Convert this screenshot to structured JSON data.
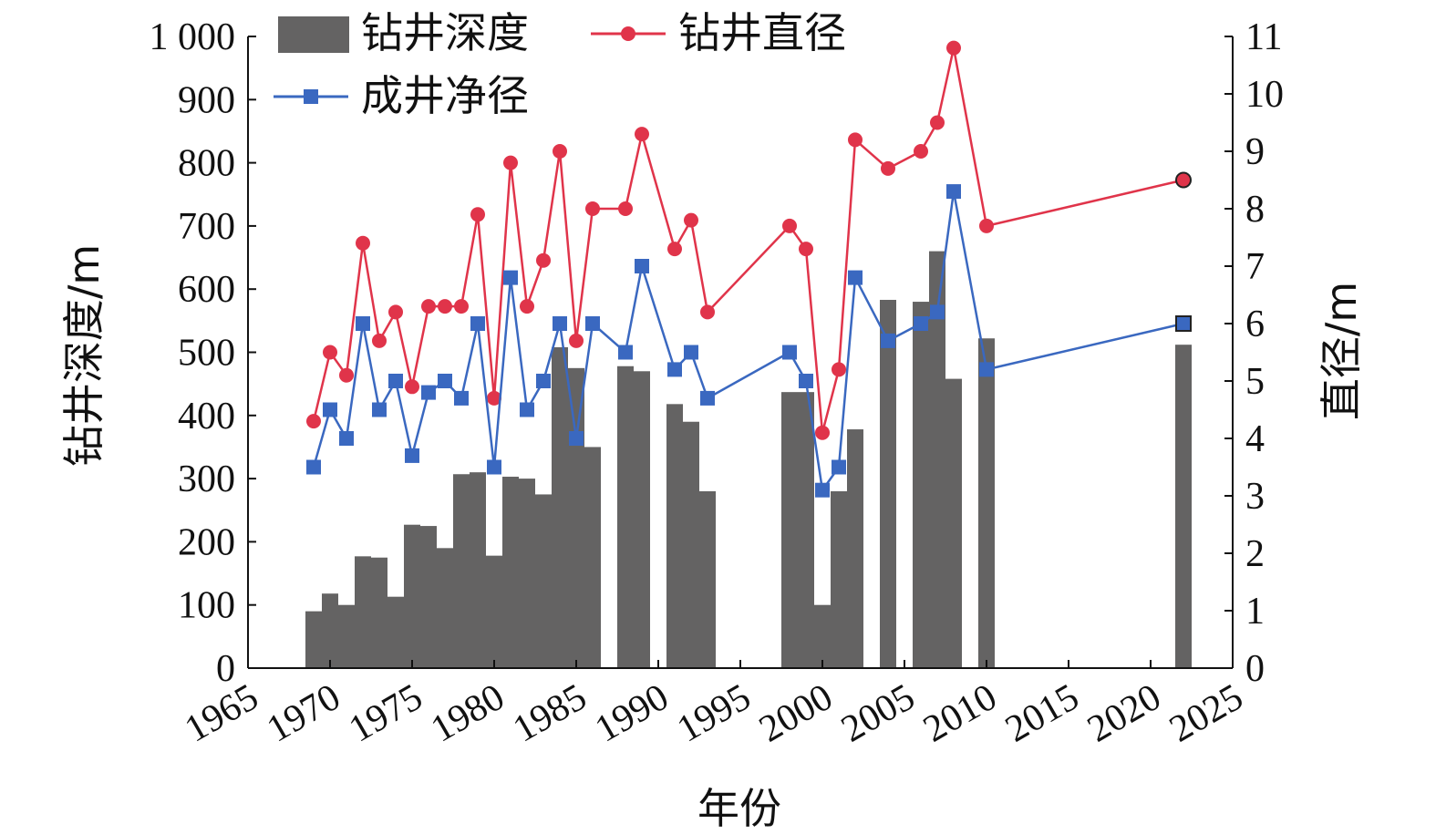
{
  "chart_data": {
    "type": "bar+line",
    "title": "",
    "xlabel": "年份",
    "ylabel_left": "钻井深度/m",
    "ylabel_right": "直径/m",
    "xlim": [
      1965,
      2025
    ],
    "x_ticks": [
      1965,
      1970,
      1975,
      1980,
      1985,
      1990,
      1995,
      2000,
      2005,
      2010,
      2015,
      2020,
      2025
    ],
    "ylim_left": [
      0,
      1000
    ],
    "y_ticks_left": [
      "0",
      "100",
      "200",
      "300",
      "400",
      "500",
      "600",
      "700",
      "800",
      "900",
      "1 000"
    ],
    "ylim_right": [
      0,
      11
    ],
    "y_ticks_right": [
      "0",
      "1",
      "2",
      "3",
      "4",
      "5",
      "6",
      "7",
      "8",
      "9",
      "10",
      "11"
    ],
    "legend_position": "top-left",
    "grid": false,
    "bars": {
      "name": "钻井深度",
      "color": "#646363",
      "points": [
        [
          1969,
          90
        ],
        [
          1970,
          118
        ],
        [
          1971,
          100
        ],
        [
          1972,
          177
        ],
        [
          1973,
          175
        ],
        [
          1974,
          113
        ],
        [
          1975,
          227
        ],
        [
          1976,
          225
        ],
        [
          1977,
          190
        ],
        [
          1978,
          307
        ],
        [
          1979,
          310
        ],
        [
          1980,
          178
        ],
        [
          1981,
          303
        ],
        [
          1982,
          300
        ],
        [
          1983,
          275
        ],
        [
          1984,
          508
        ],
        [
          1985,
          475
        ],
        [
          1986,
          350
        ],
        [
          1988,
          478
        ],
        [
          1989,
          470
        ],
        [
          1991,
          418
        ],
        [
          1992,
          390
        ],
        [
          1993,
          280
        ],
        [
          1998,
          437
        ],
        [
          1999,
          437
        ],
        [
          2000,
          100
        ],
        [
          2001,
          280
        ],
        [
          2002,
          378
        ],
        [
          2004,
          583
        ],
        [
          2006,
          580
        ],
        [
          2007,
          660
        ],
        [
          2008,
          458
        ],
        [
          2010,
          522
        ],
        [
          2022,
          512
        ]
      ]
    },
    "series": [
      {
        "name": "钻井直径",
        "color": "#e0344a",
        "marker": "circle",
        "points": [
          [
            1969,
            4.3
          ],
          [
            1970,
            5.5
          ],
          [
            1971,
            5.1
          ],
          [
            1972,
            7.4
          ],
          [
            1973,
            5.7
          ],
          [
            1974,
            6.2
          ],
          [
            1975,
            4.9
          ],
          [
            1976,
            6.3
          ],
          [
            1977,
            6.3
          ],
          [
            1978,
            6.3
          ],
          [
            1979,
            7.9
          ],
          [
            1980,
            4.7
          ],
          [
            1981,
            8.8
          ],
          [
            1982,
            6.3
          ],
          [
            1983,
            7.1
          ],
          [
            1984,
            9.0
          ],
          [
            1985,
            5.7
          ],
          [
            1986,
            8.0
          ],
          [
            1988,
            8.0
          ],
          [
            1989,
            9.3
          ],
          [
            1991,
            7.3
          ],
          [
            1992,
            7.8
          ],
          [
            1993,
            6.2
          ],
          [
            1998,
            7.7
          ],
          [
            1999,
            7.3
          ],
          [
            2000,
            4.1
          ],
          [
            2001,
            5.2
          ],
          [
            2002,
            9.2
          ],
          [
            2004,
            8.7
          ],
          [
            2006,
            9.0
          ],
          [
            2007,
            9.5
          ],
          [
            2008,
            10.8
          ],
          [
            2010,
            7.7
          ],
          [
            2022,
            8.5
          ]
        ]
      },
      {
        "name": "成井净径",
        "color": "#3a68c0",
        "marker": "square",
        "points": [
          [
            1969,
            3.5
          ],
          [
            1970,
            4.5
          ],
          [
            1971,
            4.0
          ],
          [
            1972,
            6.0
          ],
          [
            1973,
            4.5
          ],
          [
            1974,
            5.0
          ],
          [
            1975,
            3.7
          ],
          [
            1976,
            4.8
          ],
          [
            1977,
            5.0
          ],
          [
            1978,
            4.7
          ],
          [
            1979,
            6.0
          ],
          [
            1980,
            3.5
          ],
          [
            1981,
            6.8
          ],
          [
            1982,
            4.5
          ],
          [
            1983,
            5.0
          ],
          [
            1984,
            6.0
          ],
          [
            1985,
            4.0
          ],
          [
            1986,
            6.0
          ],
          [
            1988,
            5.5
          ],
          [
            1989,
            7.0
          ],
          [
            1991,
            5.2
          ],
          [
            1992,
            5.5
          ],
          [
            1993,
            4.7
          ],
          [
            1998,
            5.5
          ],
          [
            1999,
            5.0
          ],
          [
            2000,
            3.1
          ],
          [
            2001,
            3.5
          ],
          [
            2002,
            6.8
          ],
          [
            2004,
            5.7
          ],
          [
            2006,
            6.0
          ],
          [
            2007,
            6.2
          ],
          [
            2008,
            8.3
          ],
          [
            2010,
            5.2
          ],
          [
            2022,
            6.0
          ]
        ]
      }
    ]
  }
}
